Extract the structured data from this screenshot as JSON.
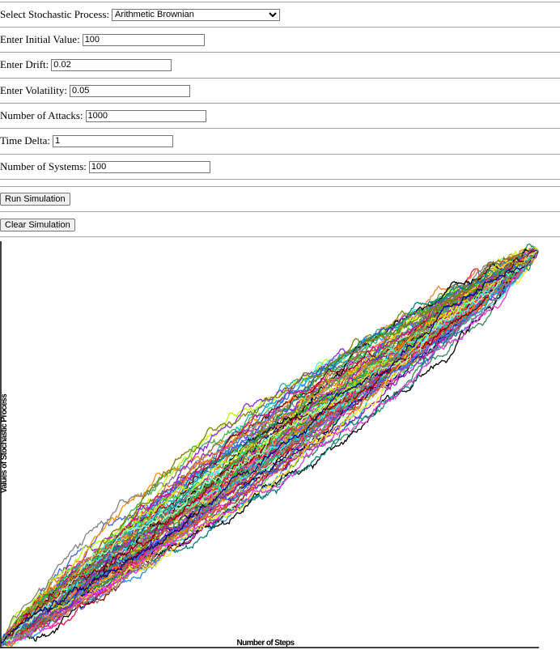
{
  "form": {
    "process_label": "Select Stochastic Process:",
    "process_value": "Arithmetic Brownian",
    "initial_label": "Enter Initial Value:",
    "initial_value": "100",
    "drift_label": "Enter Drift:",
    "drift_value": "0.02",
    "volatility_label": "Enter Volatility:",
    "volatility_value": "0.05",
    "attacks_label": "Number of Attacks:",
    "attacks_value": "1000",
    "timedelta_label": "Time Delta:",
    "timedelta_value": "1",
    "systems_label": "Number of Systems:",
    "systems_value": "100"
  },
  "buttons": {
    "run_label": "Run Simulation",
    "clear_label": "Clear Simulation"
  },
  "chart_data": {
    "type": "line",
    "xlabel": "Number of Steps",
    "ylabel": "Values of Stochastic Process",
    "n_series": 100,
    "steps": 1000,
    "initial_value": 100,
    "drift": 0.02,
    "volatility": 0.05,
    "grid": false,
    "legend": "none",
    "palette": [
      "#e6194b",
      "#3cb44b",
      "#ffe119",
      "#4363d8",
      "#f58231",
      "#911eb4",
      "#46f0f0",
      "#f032e6",
      "#bcf60c",
      "#008080",
      "#9a6324",
      "#800000",
      "#aaffc3",
      "#808000",
      "#000075",
      "#808080",
      "#000000",
      "#ff69b4",
      "#1e90ff",
      "#32cd32",
      "#8a2be2",
      "#dc143c",
      "#ff8c00",
      "#2e8b57",
      "#c71585",
      "#6b8e23",
      "#d2691e",
      "#20b2aa"
    ]
  }
}
